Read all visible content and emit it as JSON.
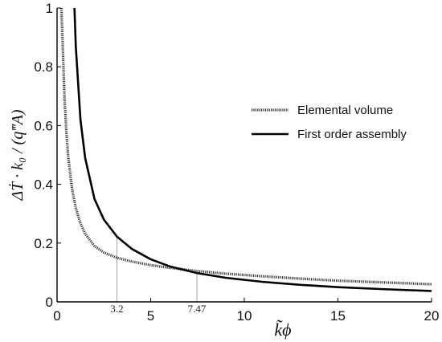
{
  "chart_data": {
    "type": "line",
    "xlabel": "k̃ϕ",
    "ylabel": "ΔṪ · k₀ / (q‴A)",
    "xlim": [
      0,
      20
    ],
    "ylim": [
      0,
      1
    ],
    "x_ticks": [
      0,
      5,
      10,
      15,
      20
    ],
    "y_ticks": [
      0,
      0.2,
      0.4,
      0.6,
      0.8,
      1
    ],
    "x_tick_labels": [
      "0",
      "5",
      "10",
      "15",
      "20"
    ],
    "y_tick_labels": [
      "0",
      "0.2",
      "0.4",
      "0.6",
      "0.8",
      "1"
    ],
    "marked_x": [
      {
        "label": "3.2",
        "x": 3.2,
        "curve": "First order assembly"
      },
      {
        "label": "7.47",
        "x": 7.47,
        "curve": "First order assembly"
      }
    ],
    "legend_position": "top-right",
    "grid": false,
    "series": [
      {
        "name": "Elemental volume",
        "style": "dotted",
        "color": "#333333",
        "x": [
          0.23,
          0.3,
          0.4,
          0.5,
          0.6,
          0.8,
          1,
          1.25,
          1.5,
          2,
          2.5,
          3.2,
          4,
          5,
          6,
          7.47,
          9,
          11,
          13,
          15,
          17.5,
          20
        ],
        "y": [
          1.0,
          0.88,
          0.69,
          0.575,
          0.49,
          0.385,
          0.32,
          0.267,
          0.232,
          0.19,
          0.168,
          0.15,
          0.137,
          0.125,
          0.116,
          0.105,
          0.096,
          0.087,
          0.079,
          0.072,
          0.066,
          0.06
        ]
      },
      {
        "name": "First order assembly",
        "style": "solid",
        "color": "#000000",
        "x": [
          0.93,
          1,
          1.25,
          1.5,
          2,
          2.5,
          3.2,
          4,
          5,
          6,
          7.47,
          9,
          11,
          13,
          15,
          17.5,
          20
        ],
        "y": [
          1.0,
          0.87,
          0.62,
          0.49,
          0.35,
          0.28,
          0.222,
          0.18,
          0.145,
          0.121,
          0.098,
          0.082,
          0.068,
          0.058,
          0.05,
          0.043,
          0.037
        ]
      }
    ]
  }
}
